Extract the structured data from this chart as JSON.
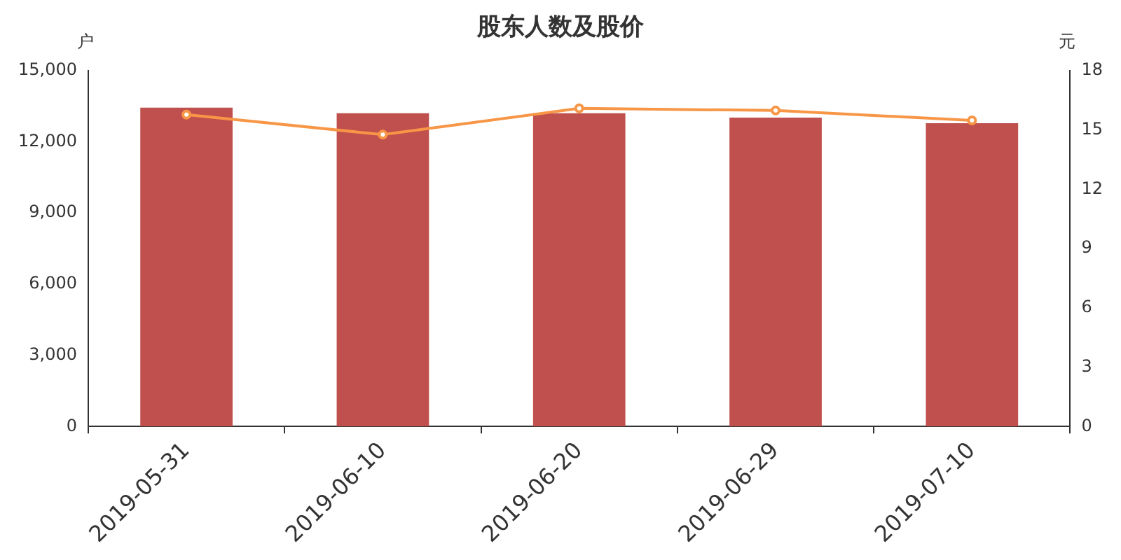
{
  "chart_data": {
    "type": "bar",
    "title": "股东人数及股价",
    "ylabel": "户",
    "y2label": "元",
    "categories": [
      "2019-05-31",
      "2019-06-10",
      "2019-06-20",
      "2019-06-29",
      "2019-07-10"
    ],
    "series": [
      {
        "color": "#c0504d",
        "values": [
          13440,
          13200,
          13200,
          13020,
          12780
        ]
      },
      {
        "type": "line",
        "axis": "y2",
        "color": "#f79646",
        "marker": "circle",
        "values": [
          15.77,
          14.76,
          16.09,
          15.98,
          15.48
        ]
      }
    ],
    "ylim": [
      0,
      15000
    ],
    "yticks": [
      {
        "value": 0,
        "label": "0"
      },
      {
        "value": 3000,
        "label": "3,000"
      },
      {
        "value": 6000,
        "label": "6,000"
      },
      {
        "value": 9000,
        "label": "9,000"
      },
      {
        "value": 12000,
        "label": "12,000"
      },
      {
        "value": 15000,
        "label": "15,000"
      }
    ],
    "y2lim": [
      0,
      18
    ],
    "y2ticks": [
      0,
      3,
      6,
      9,
      12,
      15,
      18
    ],
    "grid": false,
    "legend": false
  }
}
